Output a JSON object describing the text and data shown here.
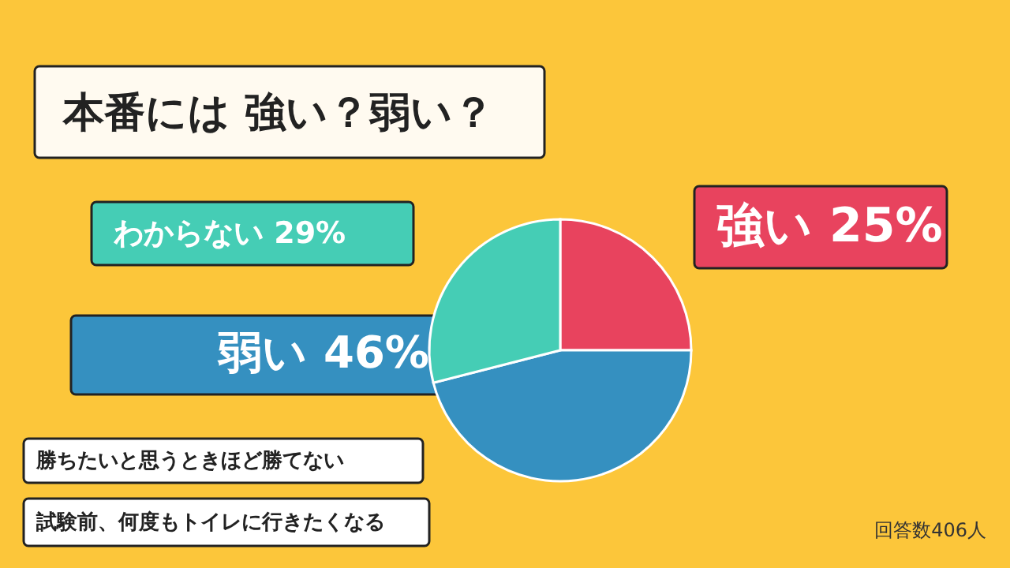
{
  "chart_data": {
    "type": "pie",
    "title": "本番には 強い？弱い？",
    "categories": [
      "強い",
      "弱い",
      "わからない"
    ],
    "values": [
      25,
      46,
      29
    ],
    "colors": [
      "#e8435e",
      "#3590c0",
      "#45cdb5"
    ],
    "value_labels": [
      "25%",
      "46%",
      "29%"
    ],
    "annotations": [
      "勝ちたいと思うときほど勝てない",
      "試験前、何度もトイレに行きたくなる",
      "回答数406人"
    ]
  }
}
